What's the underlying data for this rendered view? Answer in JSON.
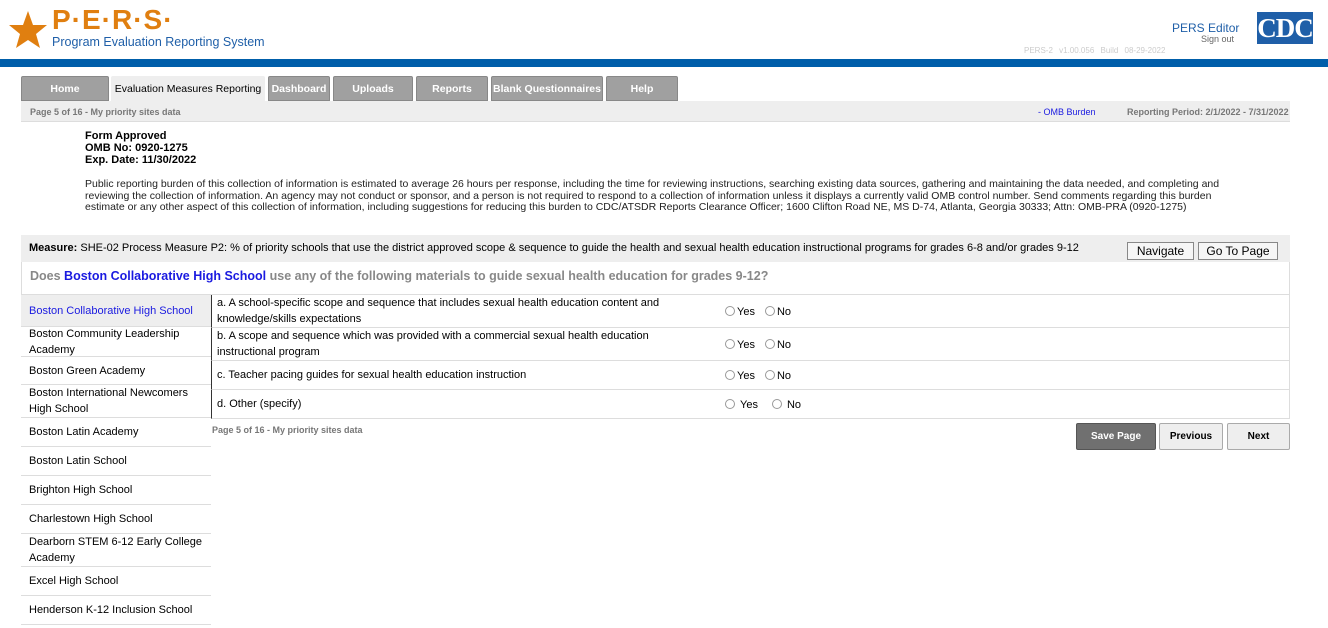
{
  "header": {
    "logo_text": "P·E·R·S·",
    "logo_subtitle": "Program Evaluation Reporting System",
    "user": "PERS Editor",
    "sign_out": "Sign out",
    "cdc_logo": "CDC",
    "version": "PERS-2 v1.00.056",
    "build": "Build 08-29-2022"
  },
  "tabs": [
    {
      "label": "Home"
    },
    {
      "label": "Evaluation Measures Reporting",
      "active": true
    },
    {
      "label": "Dashboard"
    },
    {
      "label": "Uploads"
    },
    {
      "label": "Reports"
    },
    {
      "label": "Blank Questionnaires"
    },
    {
      "label": "Help"
    }
  ],
  "subbar": {
    "page_info": "Page 5 of 16 - My priority sites data",
    "omb_link": "- OMB Burden",
    "reporting_period": "Reporting Period: 2/1/2022 - 7/31/2022"
  },
  "form": {
    "approved": "Form Approved",
    "omb_no": "OMB No: 0920-1275",
    "exp_date": "Exp. Date: 11/30/2022",
    "burden": "Public reporting burden of this collection of information is estimated to average 26 hours per response, including the time for reviewing instructions, searching existing data sources, gathering and maintaining the data needed, and completing and reviewing the collection of information. An agency may not conduct or sponsor, and a person is not required to respond to a collection of information unless it displays a currently valid OMB control number. Send comments regarding this burden estimate or any other aspect of this collection of information, including suggestions for reducing this burden to CDC/ATSDR Reports Clearance Officer; 1600 Clifton Road NE, MS D-74, Atlanta, Georgia 30333; Attn: OMB-PRA (0920-1275)"
  },
  "measure": {
    "label": "Measure:",
    "text": " SHE-02 Process Measure P2: % of priority schools that use the district approved scope & sequence to guide the health and sexual health education instructional programs for grades 6-8 and/or grades 9-12",
    "navigate": "Navigate",
    "go_to_page": "Go To Page"
  },
  "question": {
    "prefix": "Does ",
    "school": "Boston Collaborative High School",
    "suffix": " use any of the following materials to guide sexual health education for grades 9-12?"
  },
  "schools": [
    "Boston Collaborative High School",
    "Boston Community Leadership Academy",
    "Boston Green Academy",
    "Boston International Newcomers High School",
    "Boston Latin Academy",
    "Boston Latin School",
    "Brighton High School",
    "Charlestown High School",
    "Dearborn STEM 6-12 Early College Academy",
    "Excel High School",
    "Henderson K-12 Inclusion School"
  ],
  "items": [
    {
      "text": "a. A school-specific scope and sequence that includes sexual health education content and knowledge/skills expectations",
      "yes": "Yes",
      "no": "No"
    },
    {
      "text": "b. A scope and sequence which was provided with a commercial sexual health education instructional program",
      "yes": "Yes",
      "no": "No"
    },
    {
      "text": "c. Teacher pacing guides for sexual health education instruction",
      "yes": "Yes",
      "no": "No"
    },
    {
      "text": "d. Other (specify)",
      "yes": "Yes",
      "no": "No"
    }
  ],
  "footer": {
    "page_info": "Page 5 of 16 - My priority sites data",
    "save": "Save Page",
    "previous": "Previous",
    "next": "Next"
  }
}
